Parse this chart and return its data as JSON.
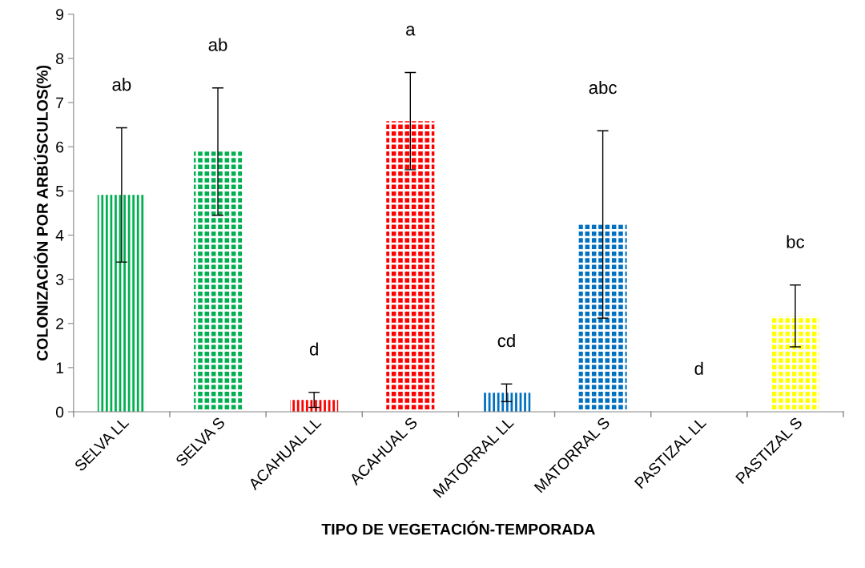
{
  "chart_data": {
    "type": "bar",
    "xlabel": "TIPO DE VEGETACIÓN-TEMPORADA",
    "ylabel": "COLONIZACIÓN POR ARBÚSCULOS(%)",
    "categories": [
      "SELVA LL",
      "SELVA S",
      "ACAHUAL LL",
      "ACAHUAL S",
      "MATORRAL LL",
      "MATORRAL S",
      "PASTIZAL LL",
      "PASTIZAL S"
    ],
    "values": [
      4.91,
      5.89,
      0.27,
      6.58,
      0.43,
      4.24,
      0,
      2.17
    ],
    "errors": [
      1.52,
      1.44,
      0.17,
      1.1,
      0.2,
      2.12,
      null,
      0.7
    ],
    "colors": [
      "#00b050",
      "#00b050",
      "#ff0000",
      "#ff0000",
      "#0070c0",
      "#0070c0",
      "#ffff00",
      "#ffff00"
    ],
    "ylim": [
      0,
      9
    ],
    "yticks": [
      0,
      1,
      2,
      3,
      4,
      5,
      6,
      7,
      8,
      9
    ],
    "grid": false,
    "legend": false,
    "annotations": [
      "ab",
      "ab",
      "d",
      "a",
      "cd",
      "abc",
      "d",
      "bc"
    ]
  }
}
